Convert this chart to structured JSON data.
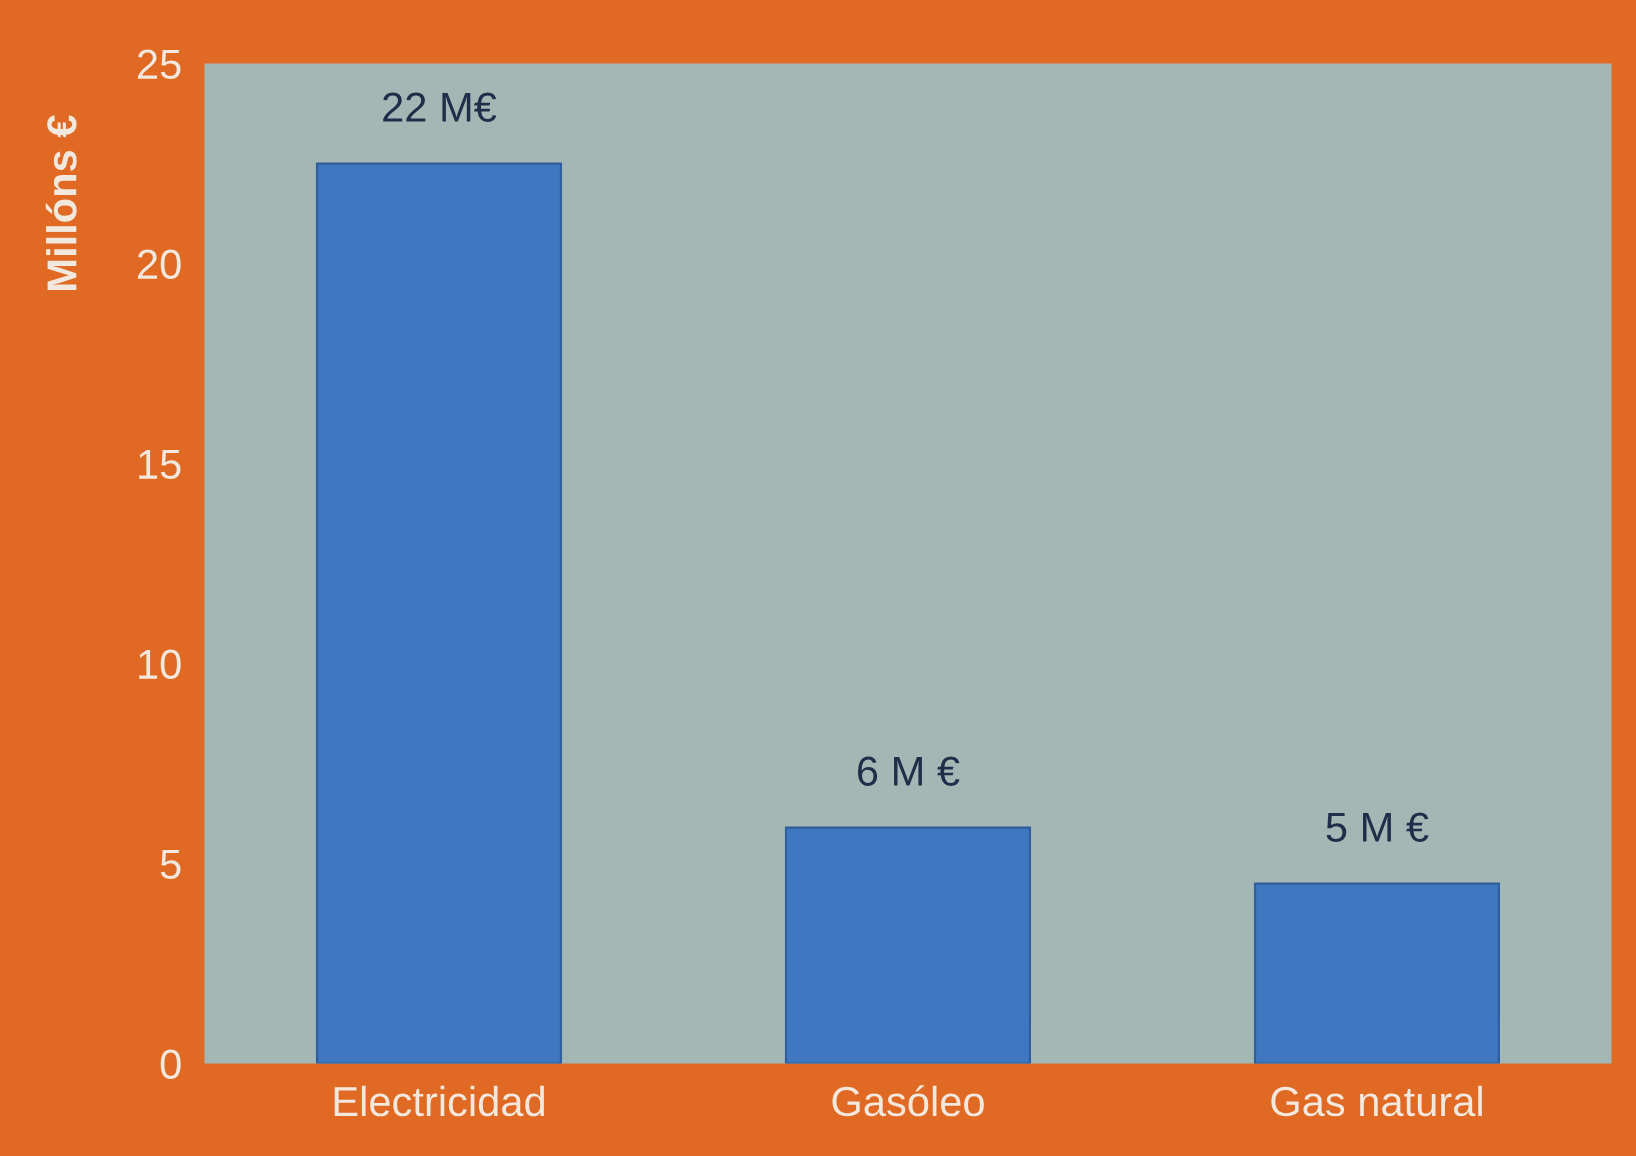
{
  "chart_data": {
    "type": "bar",
    "ylabel": "Millóns €",
    "categories": [
      "Electricidad",
      "Gasóleo",
      "Gas natural"
    ],
    "values": [
      22.5,
      5.9,
      4.5
    ],
    "value_labels": [
      "22 M€",
      "6 M €",
      "5 M €"
    ],
    "color": "#3f78c0",
    "ylim": [
      0,
      25
    ],
    "yticks": [
      0,
      5,
      10,
      15,
      20,
      25
    ],
    "grid": false,
    "legend": false
  }
}
